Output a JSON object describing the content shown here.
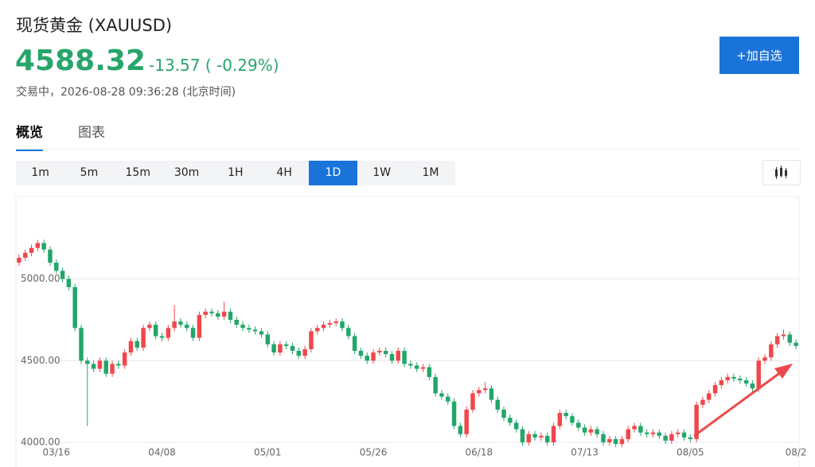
{
  "header": {
    "title": "现货黄金 (XAUUSD)",
    "price": "4588.32",
    "change": "-13.57 ( -0.29%)",
    "status": "交易中，2026-08-28 09:36:28 (北京时间)",
    "button": "+加自选"
  },
  "tabs": [
    "概览",
    "图表"
  ],
  "active_tab": "概览",
  "timeframes": [
    "1m",
    "5m",
    "15m",
    "30m",
    "1H",
    "4H",
    "1D",
    "1W",
    "1M"
  ],
  "active_timeframe": "1D",
  "chart_data": {
    "type": "candlestick",
    "up_color": "#f0474c",
    "down_color": "#22a66a",
    "grid": true,
    "ylim": [
      3883,
      5500
    ],
    "yticks": [
      {
        "value": 4000,
        "label": "4000.00"
      },
      {
        "value": 4500,
        "label": "4500.00"
      },
      {
        "value": 5000,
        "label": "5000.00"
      }
    ],
    "categories": [
      null,
      null,
      null,
      null,
      null,
      null,
      "03/16",
      null,
      null,
      null,
      null,
      null,
      null,
      null,
      null,
      null,
      null,
      null,
      null,
      null,
      null,
      null,
      null,
      "04/08",
      null,
      null,
      null,
      null,
      null,
      null,
      null,
      null,
      null,
      null,
      null,
      null,
      null,
      null,
      null,
      null,
      "05/01",
      null,
      null,
      null,
      null,
      null,
      null,
      null,
      null,
      null,
      null,
      null,
      null,
      null,
      null,
      null,
      null,
      "05/26",
      null,
      null,
      null,
      null,
      null,
      null,
      null,
      null,
      null,
      null,
      null,
      null,
      null,
      null,
      null,
      null,
      "06/18",
      null,
      null,
      null,
      null,
      null,
      null,
      null,
      null,
      null,
      null,
      null,
      null,
      null,
      null,
      null,
      null,
      "07/13",
      null,
      null,
      null,
      null,
      null,
      null,
      null,
      null,
      null,
      null,
      null,
      null,
      null,
      null,
      null,
      null,
      "08/05",
      null,
      null,
      null,
      null,
      null,
      null,
      null,
      null,
      null,
      null,
      null,
      null,
      null,
      null,
      null,
      null,
      "08/2"
    ],
    "open": [
      5100,
      5130,
      5160,
      5190,
      5220,
      5180,
      5100,
      5050,
      5000,
      4950,
      4700,
      4500,
      4480,
      4450,
      4500,
      4420,
      4480,
      4470,
      4550,
      4620,
      4580,
      4700,
      4720,
      4650,
      4640,
      4700,
      4740,
      4720,
      4700,
      4640,
      4780,
      4800,
      4790,
      4770,
      4800,
      4750,
      4720,
      4700,
      4690,
      4680,
      4660,
      4600,
      4550,
      4600,
      4590,
      4560,
      4530,
      4570,
      4680,
      4700,
      4720,
      4730,
      4740,
      4700,
      4650,
      4560,
      4530,
      4500,
      4550,
      4560,
      4540,
      4500,
      4560,
      4480,
      4470,
      4450,
      4460,
      4400,
      4300,
      4280,
      4250,
      4100,
      4050,
      4200,
      4300,
      4320,
      4330,
      4260,
      4200,
      4150,
      4120,
      4080,
      4000,
      4050,
      4030,
      4040,
      4000,
      4100,
      4180,
      4160,
      4120,
      4090,
      4060,
      4080,
      4050,
      4000,
      4020,
      3990,
      4020,
      4080,
      4100,
      4060,
      4050,
      4060,
      4040,
      4010,
      4050,
      4060,
      4030,
      4020,
      4230,
      4260,
      4300,
      4350,
      4380,
      4400,
      4390,
      4380,
      4360,
      4330,
      4500,
      4520,
      4600,
      4650,
      4660,
      4610
    ],
    "close": [
      5130,
      5160,
      5190,
      5220,
      5180,
      5100,
      5050,
      5000,
      4950,
      4700,
      4500,
      4480,
      4450,
      4500,
      4420,
      4480,
      4470,
      4550,
      4620,
      4580,
      4700,
      4720,
      4650,
      4640,
      4700,
      4740,
      4720,
      4700,
      4640,
      4780,
      4800,
      4790,
      4770,
      4800,
      4750,
      4720,
      4700,
      4690,
      4680,
      4660,
      4600,
      4550,
      4600,
      4590,
      4560,
      4530,
      4570,
      4680,
      4700,
      4720,
      4730,
      4740,
      4700,
      4650,
      4560,
      4530,
      4500,
      4550,
      4560,
      4540,
      4500,
      4560,
      4480,
      4470,
      4450,
      4460,
      4400,
      4300,
      4280,
      4250,
      4100,
      4050,
      4200,
      4300,
      4320,
      4330,
      4260,
      4200,
      4150,
      4120,
      4080,
      4000,
      4050,
      4030,
      4040,
      4000,
      4100,
      4180,
      4160,
      4120,
      4090,
      4060,
      4080,
      4050,
      4000,
      4020,
      3990,
      4020,
      4080,
      4100,
      4060,
      4050,
      4060,
      4040,
      4010,
      4050,
      4060,
      4030,
      4020,
      4230,
      4260,
      4300,
      4350,
      4380,
      4400,
      4390,
      4380,
      4360,
      4330,
      4500,
      4520,
      4600,
      4650,
      4660,
      4610,
      4590
    ],
    "high": [
      5150,
      5180,
      5210,
      5240,
      5240,
      5200,
      5120,
      5070,
      5020,
      4970,
      4720,
      4520,
      4500,
      4520,
      4520,
      4500,
      4500,
      4570,
      4640,
      4640,
      4720,
      4740,
      4740,
      4670,
      4720,
      4840,
      4760,
      4740,
      4720,
      4800,
      4820,
      4820,
      4810,
      4860,
      4820,
      4770,
      4740,
      4720,
      4710,
      4700,
      4680,
      4620,
      4620,
      4620,
      4610,
      4580,
      4590,
      4700,
      4720,
      4740,
      4750,
      4760,
      4760,
      4720,
      4670,
      4580,
      4550,
      4570,
      4580,
      4580,
      4560,
      4580,
      4580,
      4500,
      4490,
      4480,
      4480,
      4420,
      4320,
      4300,
      4270,
      4120,
      4220,
      4320,
      4340,
      4370,
      4350,
      4280,
      4220,
      4170,
      4140,
      4100,
      4070,
      4070,
      4060,
      4060,
      4120,
      4200,
      4200,
      4180,
      4140,
      4110,
      4100,
      4100,
      4070,
      4040,
      4040,
      4040,
      4100,
      4120,
      4120,
      4080,
      4080,
      4080,
      4060,
      4070,
      4080,
      4080,
      4050,
      4250,
      4280,
      4320,
      4370,
      4400,
      4420,
      4420,
      4410,
      4400,
      4380,
      4520,
      4540,
      4620,
      4670,
      4690,
      4680,
      4630
    ],
    "low": [
      5080,
      5110,
      5140,
      5170,
      5160,
      5080,
      5030,
      4980,
      4930,
      4680,
      4480,
      4100,
      4430,
      4430,
      4400,
      4400,
      4450,
      4450,
      4530,
      4560,
      4560,
      4680,
      4630,
      4620,
      4620,
      4680,
      4700,
      4680,
      4620,
      4620,
      4760,
      4770,
      4750,
      4750,
      4730,
      4700,
      4680,
      4670,
      4660,
      4640,
      4580,
      4530,
      4530,
      4570,
      4540,
      4510,
      4510,
      4550,
      4660,
      4680,
      4700,
      4710,
      4680,
      4630,
      4540,
      4510,
      4480,
      4480,
      4530,
      4520,
      4480,
      4480,
      4460,
      4450,
      4430,
      4430,
      4380,
      4280,
      4260,
      4230,
      4080,
      4030,
      4030,
      4180,
      4280,
      4300,
      4240,
      4180,
      4130,
      4100,
      4060,
      3980,
      3980,
      4010,
      4010,
      3980,
      3980,
      4080,
      4140,
      4100,
      4070,
      4040,
      4040,
      4030,
      3980,
      3980,
      3970,
      3970,
      4000,
      4060,
      4040,
      4030,
      4030,
      4020,
      3990,
      3990,
      4030,
      4010,
      4000,
      4000,
      4210,
      4240,
      4280,
      4330,
      4360,
      4370,
      4360,
      4340,
      4310,
      4310,
      4480,
      4500,
      4580,
      4630,
      4590,
      4570
    ]
  }
}
